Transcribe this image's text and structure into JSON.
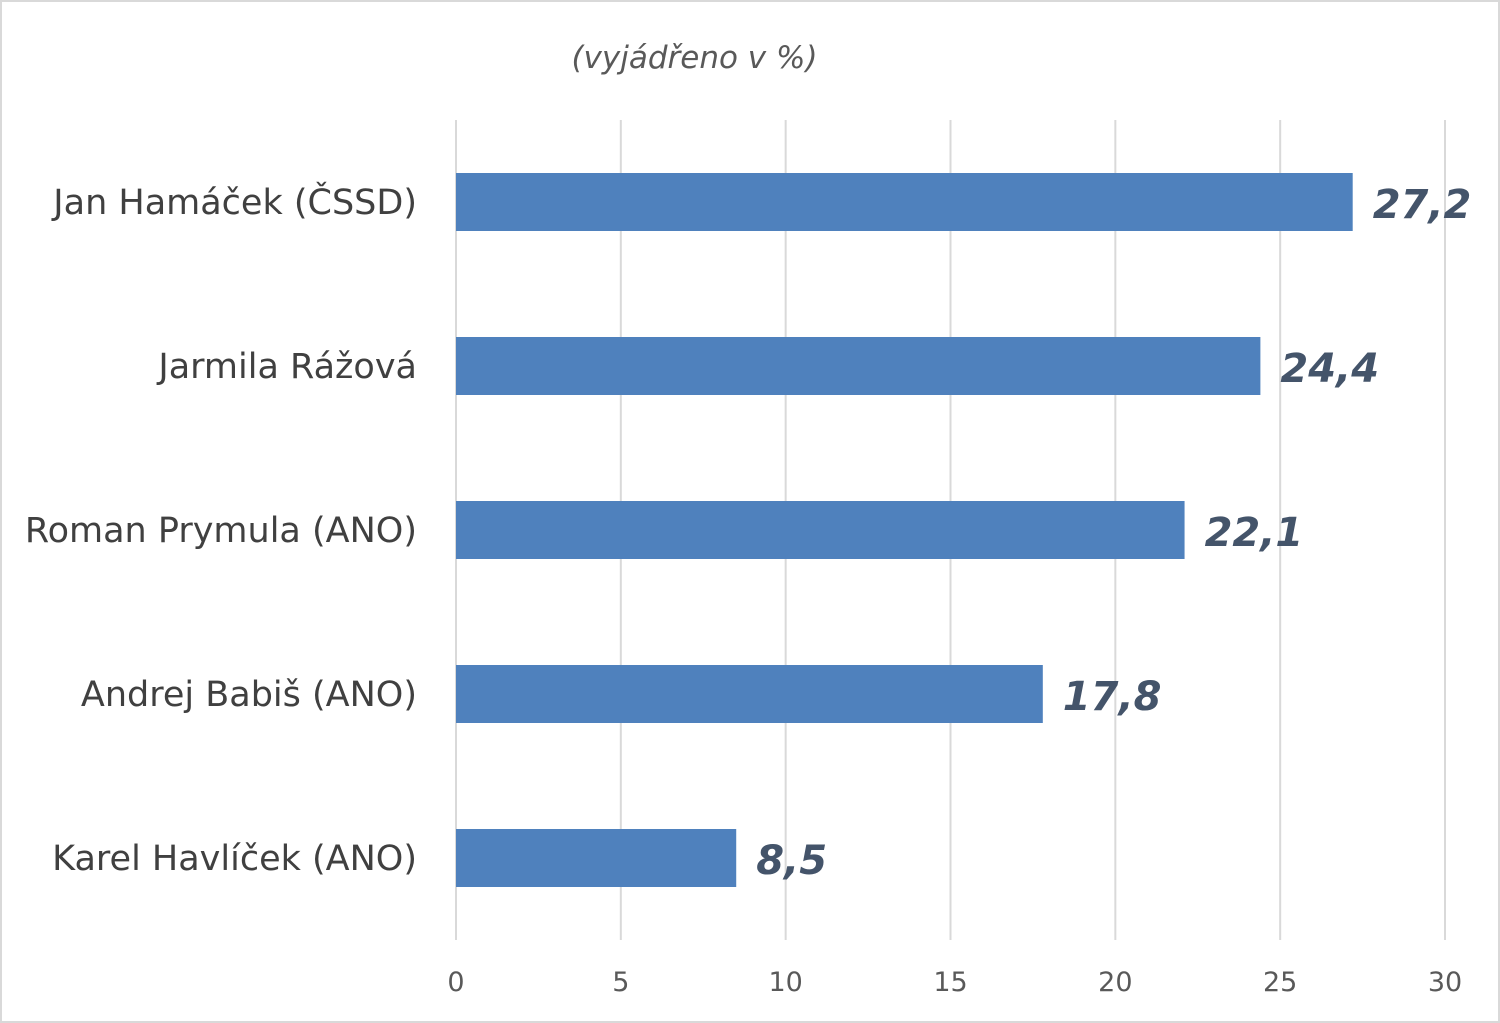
{
  "chart_data": {
    "type": "bar",
    "orientation": "horizontal",
    "subtitle": "(vyjádřeno v %)",
    "categories": [
      "Jan Hamáček (ČSSD)",
      "Jarmila Rážová",
      "Roman Prymula (ANO)",
      "Andrej Babiš (ANO)",
      "Karel Havlíček (ANO)"
    ],
    "values": [
      27.2,
      24.4,
      22.1,
      17.8,
      8.5
    ],
    "value_labels": [
      "27,2",
      "24,4",
      "22,1",
      "17,8",
      "8,5"
    ],
    "xlim": [
      0,
      30
    ],
    "xticks": [
      0,
      5,
      10,
      15,
      20,
      25,
      30
    ],
    "grid": true,
    "bar_color": "#4f81bd",
    "gridline_color": "#d9d9d9",
    "label_color": "#44546a"
  }
}
